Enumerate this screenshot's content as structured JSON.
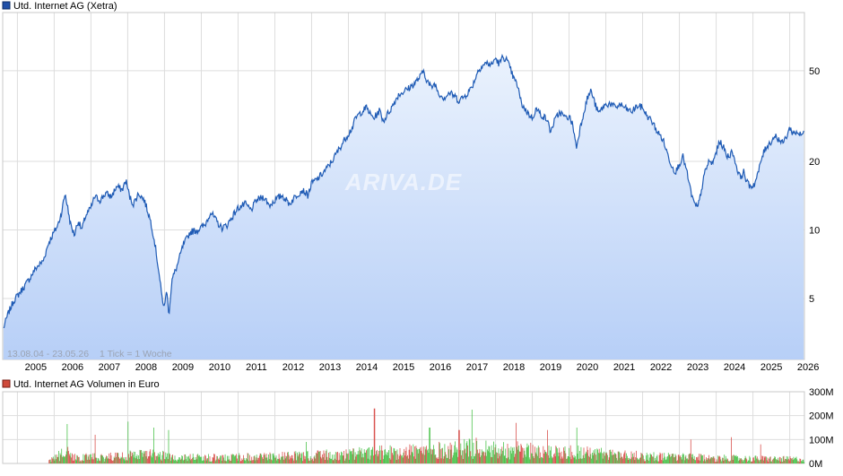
{
  "chart_data": [
    {
      "type": "line",
      "legend": "Utd. Internet AG (Xetra)",
      "legend_color": "#1f4fa8",
      "line_color": "#1f5bb5",
      "fill_top_color": "#eaf2fd",
      "fill_bottom_color": "#b7cff7",
      "watermark": "ARIVA.DE",
      "date_range": "13.08.04 - 23.05.26",
      "tick_note": "1 Tick = 1 Woche",
      "x_labels": [
        "2005",
        "2006",
        "2007",
        "2008",
        "2009",
        "2010",
        "2011",
        "2012",
        "2013",
        "2014",
        "2015",
        "2016",
        "2017",
        "2018",
        "2019",
        "2020",
        "2021",
        "2022",
        "2023",
        "2024",
        "2025",
        "2026"
      ],
      "y_scale": "log",
      "y_ticks": [
        5,
        10,
        20,
        50
      ],
      "y_tick_labels": [
        "5",
        "10",
        "20",
        "50"
      ],
      "ylim": [
        2.7,
        90
      ],
      "xlim": [
        2004.6,
        2026.4
      ],
      "grid": true,
      "series": [
        {
          "name": "Utd. Internet AG (Xetra)",
          "points": [
            [
              2004.62,
              3.7
            ],
            [
              2004.75,
              4.3
            ],
            [
              2004.9,
              4.9
            ],
            [
              2005.1,
              5.4
            ],
            [
              2005.3,
              6.0
            ],
            [
              2005.5,
              6.8
            ],
            [
              2005.7,
              7.3
            ],
            [
              2005.85,
              8.8
            ],
            [
              2006.0,
              9.8
            ],
            [
              2006.1,
              10.5
            ],
            [
              2006.2,
              12.0
            ],
            [
              2006.3,
              14.5
            ],
            [
              2006.35,
              13.0
            ],
            [
              2006.45,
              10.5
            ],
            [
              2006.55,
              9.5
            ],
            [
              2006.65,
              11.0
            ],
            [
              2006.75,
              10.0
            ],
            [
              2006.85,
              11.5
            ],
            [
              2007.0,
              12.5
            ],
            [
              2007.1,
              14.0
            ],
            [
              2007.25,
              13.5
            ],
            [
              2007.4,
              14.5
            ],
            [
              2007.55,
              14.0
            ],
            [
              2007.7,
              15.5
            ],
            [
              2007.85,
              15.0
            ],
            [
              2007.95,
              16.5
            ],
            [
              2008.05,
              14.0
            ],
            [
              2008.15,
              13.0
            ],
            [
              2008.3,
              14.5
            ],
            [
              2008.45,
              13.5
            ],
            [
              2008.55,
              12.0
            ],
            [
              2008.65,
              10.5
            ],
            [
              2008.75,
              8.5
            ],
            [
              2008.85,
              6.5
            ],
            [
              2008.92,
              5.2
            ],
            [
              2009.0,
              4.5
            ],
            [
              2009.05,
              5.5
            ],
            [
              2009.12,
              4.3
            ],
            [
              2009.2,
              6.0
            ],
            [
              2009.35,
              7.0
            ],
            [
              2009.5,
              8.5
            ],
            [
              2009.7,
              9.8
            ],
            [
              2009.9,
              10.0
            ],
            [
              2010.1,
              10.5
            ],
            [
              2010.25,
              12.0
            ],
            [
              2010.4,
              11.0
            ],
            [
              2010.55,
              10.2
            ],
            [
              2010.7,
              10.5
            ],
            [
              2010.85,
              11.5
            ],
            [
              2011.0,
              12.5
            ],
            [
              2011.2,
              13.0
            ],
            [
              2011.35,
              12.2
            ],
            [
              2011.5,
              13.5
            ],
            [
              2011.7,
              14.0
            ],
            [
              2011.85,
              12.8
            ],
            [
              2012.0,
              13.5
            ],
            [
              2012.2,
              14.2
            ],
            [
              2012.4,
              13.0
            ],
            [
              2012.55,
              14.0
            ],
            [
              2012.75,
              15.0
            ],
            [
              2012.9,
              14.2
            ],
            [
              2013.0,
              16.0
            ],
            [
              2013.2,
              17.0
            ],
            [
              2013.4,
              18.5
            ],
            [
              2013.55,
              20.0
            ],
            [
              2013.7,
              22.0
            ],
            [
              2013.9,
              25.0
            ],
            [
              2014.1,
              28.0
            ],
            [
              2014.2,
              31.0
            ],
            [
              2014.35,
              33.0
            ],
            [
              2014.5,
              34.5
            ],
            [
              2014.6,
              32.0
            ],
            [
              2014.7,
              31.0
            ],
            [
              2014.85,
              33.5
            ],
            [
              2014.95,
              30.0
            ],
            [
              2015.05,
              32.0
            ],
            [
              2015.2,
              35.0
            ],
            [
              2015.35,
              39.0
            ],
            [
              2015.5,
              40.5
            ],
            [
              2015.65,
              42.0
            ],
            [
              2015.8,
              44.0
            ],
            [
              2015.95,
              47.0
            ],
            [
              2016.05,
              50.0
            ],
            [
              2016.12,
              46.0
            ],
            [
              2016.25,
              42.0
            ],
            [
              2016.35,
              44.0
            ],
            [
              2016.45,
              40.0
            ],
            [
              2016.6,
              38.0
            ],
            [
              2016.75,
              40.0
            ],
            [
              2016.9,
              38.5
            ],
            [
              2017.0,
              37.0
            ],
            [
              2017.15,
              38.5
            ],
            [
              2017.3,
              41.0
            ],
            [
              2017.4,
              44.0
            ],
            [
              2017.5,
              49.0
            ],
            [
              2017.6,
              52.0
            ],
            [
              2017.75,
              54.0
            ],
            [
              2017.9,
              53.0
            ],
            [
              2018.0,
              57.0
            ],
            [
              2018.05,
              55.0
            ],
            [
              2018.1,
              53.5
            ],
            [
              2018.2,
              57.5
            ],
            [
              2018.3,
              56.0
            ],
            [
              2018.4,
              51.0
            ],
            [
              2018.5,
              46.0
            ],
            [
              2018.6,
              43.0
            ],
            [
              2018.7,
              36.0
            ],
            [
              2018.85,
              33.0
            ],
            [
              2019.0,
              31.0
            ],
            [
              2019.1,
              34.0
            ],
            [
              2019.25,
              32.0
            ],
            [
              2019.4,
              30.5
            ],
            [
              2019.5,
              27.0
            ],
            [
              2019.6,
              30.0
            ],
            [
              2019.75,
              33.0
            ],
            [
              2019.9,
              31.0
            ],
            [
              2020.0,
              31.5
            ],
            [
              2020.1,
              29.0
            ],
            [
              2020.2,
              23.0
            ],
            [
              2020.3,
              28.0
            ],
            [
              2020.4,
              33.0
            ],
            [
              2020.5,
              38.0
            ],
            [
              2020.6,
              41.0
            ],
            [
              2020.7,
              36.0
            ],
            [
              2020.8,
              32.5
            ],
            [
              2020.95,
              35.0
            ],
            [
              2021.1,
              36.0
            ],
            [
              2021.25,
              34.5
            ],
            [
              2021.4,
              35.5
            ],
            [
              2021.55,
              34.0
            ],
            [
              2021.7,
              33.0
            ],
            [
              2021.85,
              35.0
            ],
            [
              2022.0,
              34.5
            ],
            [
              2022.1,
              32.0
            ],
            [
              2022.25,
              30.0
            ],
            [
              2022.4,
              27.0
            ],
            [
              2022.55,
              25.0
            ],
            [
              2022.7,
              21.0
            ],
            [
              2022.8,
              19.0
            ],
            [
              2022.9,
              18.0
            ],
            [
              2023.0,
              19.5
            ],
            [
              2023.1,
              21.0
            ],
            [
              2023.2,
              18.0
            ],
            [
              2023.3,
              15.0
            ],
            [
              2023.4,
              13.0
            ],
            [
              2023.5,
              12.5
            ],
            [
              2023.6,
              15.0
            ],
            [
              2023.7,
              18.0
            ],
            [
              2023.8,
              20.0
            ],
            [
              2023.9,
              19.5
            ],
            [
              2024.0,
              22.0
            ],
            [
              2024.1,
              24.5
            ],
            [
              2024.2,
              23.0
            ],
            [
              2024.3,
              21.0
            ],
            [
              2024.45,
              22.0
            ],
            [
              2024.55,
              19.0
            ],
            [
              2024.65,
              17.0
            ],
            [
              2024.75,
              18.0
            ],
            [
              2024.85,
              16.0
            ],
            [
              2024.95,
              15.5
            ],
            [
              2025.05,
              16.0
            ],
            [
              2025.15,
              18.0
            ],
            [
              2025.25,
              21.0
            ],
            [
              2025.35,
              23.0
            ],
            [
              2025.5,
              24.5
            ],
            [
              2025.6,
              26.0
            ],
            [
              2025.7,
              25.0
            ],
            [
              2025.8,
              24.0
            ],
            [
              2025.9,
              25.5
            ],
            [
              2026.0,
              28.0
            ],
            [
              2026.1,
              26.5
            ],
            [
              2026.2,
              27.0
            ],
            [
              2026.3,
              26.0
            ],
            [
              2026.38,
              26.8
            ]
          ]
        }
      ]
    },
    {
      "type": "bar",
      "legend": "Utd. Internet AG Volumen in Euro",
      "legend_color": "#cf4a3a",
      "up_color": "#4cc34c",
      "down_color": "#d9534f",
      "y_ticks": [
        0,
        100,
        200,
        300
      ],
      "y_tick_labels": [
        "0M",
        "100M",
        "200M",
        "300M"
      ],
      "ylim": [
        0,
        300
      ],
      "unit": "M Euro",
      "volume_profile": [
        [
          2004.6,
          0
        ],
        [
          2005.8,
          5
        ],
        [
          2006.0,
          22
        ],
        [
          2006.3,
          45
        ],
        [
          2006.6,
          28
        ],
        [
          2007.0,
          25
        ],
        [
          2007.5,
          28
        ],
        [
          2008.0,
          32
        ],
        [
          2008.7,
          38
        ],
        [
          2009.0,
          30
        ],
        [
          2009.5,
          25
        ],
        [
          2010.0,
          24
        ],
        [
          2011.0,
          26
        ],
        [
          2012.0,
          28
        ],
        [
          2013.0,
          32
        ],
        [
          2014.0,
          38
        ],
        [
          2015.0,
          45
        ],
        [
          2015.5,
          52
        ],
        [
          2016.0,
          50
        ],
        [
          2017.0,
          58
        ],
        [
          2017.5,
          65
        ],
        [
          2018.0,
          58
        ],
        [
          2019.0,
          52
        ],
        [
          2020.0,
          48
        ],
        [
          2020.5,
          44
        ],
        [
          2021.0,
          38
        ],
        [
          2022.0,
          30
        ],
        [
          2023.0,
          26
        ],
        [
          2024.0,
          22
        ],
        [
          2025.0,
          20
        ],
        [
          2026.0,
          18
        ],
        [
          2026.4,
          18
        ]
      ],
      "spikes": [
        [
          2006.35,
          165
        ],
        [
          2007.1,
          120
        ],
        [
          2008.0,
          175
        ],
        [
          2008.7,
          150
        ],
        [
          2009.1,
          140
        ],
        [
          2012.85,
          90
        ],
        [
          2014.7,
          230
        ],
        [
          2016.2,
          150
        ],
        [
          2017.0,
          140
        ],
        [
          2017.35,
          225
        ],
        [
          2018.55,
          170
        ],
        [
          2019.4,
          140
        ],
        [
          2020.2,
          150
        ],
        [
          2023.3,
          100
        ],
        [
          2024.4,
          110
        ],
        [
          2025.2,
          80
        ]
      ]
    }
  ]
}
